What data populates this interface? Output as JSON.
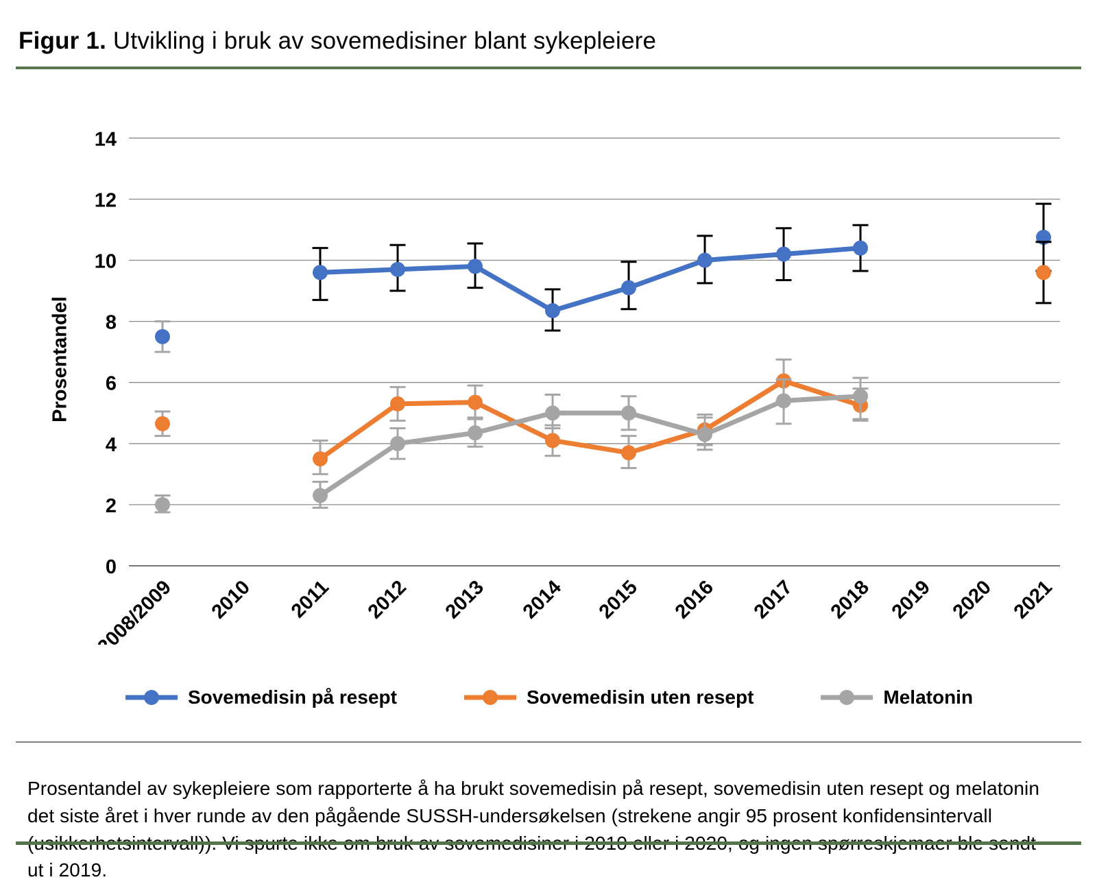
{
  "figure": {
    "title_prefix": "Figur 1.",
    "title_rest": " Utvikling i bruk av sovemedisiner blant sykepleiere",
    "caption": "Prosentandel av sykepleiere som rapporterte å ha brukt sovemedisin på resept, sovemedisin uten resept og melatonin det siste året i hver runde av den pågående SUSSH-undersøkelsen (strekene angir 95 prosent konfidensintervall (usikkerhetsintervall)). Vi spurte ikke om bruk av sovemedisiner i 2010 eller i 2020, og ingen spørreskjemaer ble sendt ut i 2019.",
    "accent_green": "#5a7850",
    "gridline_color": "#8c8c8c",
    "axis_color": "#767676"
  },
  "chart_data": {
    "type": "line",
    "title": "Utvikling i bruk av sovemedisiner blant sykepleiere",
    "xlabel": "",
    "ylabel": "Prosentandel",
    "ylim": [
      0,
      14
    ],
    "yticks": [
      0,
      2,
      4,
      6,
      8,
      10,
      12,
      14
    ],
    "grid": true,
    "legend_position": "bottom",
    "error_bars": "95 prosent konfidensintervall",
    "categories": [
      "2008/2009",
      "2010",
      "2011",
      "2012",
      "2013",
      "2014",
      "2015",
      "2016",
      "2017",
      "2018",
      "2019",
      "2020",
      "2021"
    ],
    "series": [
      {
        "name": "Sovemedisin på resept",
        "color": "#4472C4",
        "error_bar_color_default": "#000000",
        "points": [
          {
            "category": "2008/2009",
            "value": 7.5,
            "ci_low": 7.0,
            "ci_high": 8.0,
            "error_bar_color": "#A6A6A6"
          },
          {
            "category": "2011",
            "value": 9.6,
            "ci_low": 8.7,
            "ci_high": 10.4
          },
          {
            "category": "2012",
            "value": 9.7,
            "ci_low": 9.0,
            "ci_high": 10.5
          },
          {
            "category": "2013",
            "value": 9.8,
            "ci_low": 9.1,
            "ci_high": 10.55
          },
          {
            "category": "2014",
            "value": 8.35,
            "ci_low": 7.7,
            "ci_high": 9.05
          },
          {
            "category": "2015",
            "value": 9.1,
            "ci_low": 8.4,
            "ci_high": 9.95
          },
          {
            "category": "2016",
            "value": 10.0,
            "ci_low": 9.25,
            "ci_high": 10.8
          },
          {
            "category": "2017",
            "value": 10.2,
            "ci_low": 9.35,
            "ci_high": 11.05
          },
          {
            "category": "2018",
            "value": 10.4,
            "ci_low": 9.65,
            "ci_high": 11.15
          },
          {
            "category": "2021",
            "value": 10.75,
            "ci_low": 9.65,
            "ci_high": 11.85
          }
        ]
      },
      {
        "name": "Sovemedisin uten resept",
        "color": "#ED7D31",
        "error_bar_color_default": "#A6A6A6",
        "points": [
          {
            "category": "2008/2009",
            "value": 4.65,
            "ci_low": 4.25,
            "ci_high": 5.05
          },
          {
            "category": "2011",
            "value": 3.5,
            "ci_low": 3.0,
            "ci_high": 4.1
          },
          {
            "category": "2012",
            "value": 5.3,
            "ci_low": 4.75,
            "ci_high": 5.85
          },
          {
            "category": "2013",
            "value": 5.35,
            "ci_low": 4.8,
            "ci_high": 5.9
          },
          {
            "category": "2014",
            "value": 4.1,
            "ci_low": 3.6,
            "ci_high": 4.6
          },
          {
            "category": "2015",
            "value": 3.7,
            "ci_low": 3.2,
            "ci_high": 4.25
          },
          {
            "category": "2016",
            "value": 4.45,
            "ci_low": 3.95,
            "ci_high": 4.95
          },
          {
            "category": "2017",
            "value": 6.05,
            "ci_low": 5.4,
            "ci_high": 6.75
          },
          {
            "category": "2018",
            "value": 5.25,
            "ci_low": 4.75,
            "ci_high": 5.8
          },
          {
            "category": "2021",
            "value": 9.6,
            "ci_low": 8.6,
            "ci_high": 10.6,
            "error_bar_color": "#000000"
          }
        ]
      },
      {
        "name": "Melatonin",
        "color": "#A5A5A5",
        "error_bar_color_default": "#A6A6A6",
        "points": [
          {
            "category": "2008/2009",
            "value": 2.0,
            "ci_low": 1.75,
            "ci_high": 2.3
          },
          {
            "category": "2011",
            "value": 2.3,
            "ci_low": 1.9,
            "ci_high": 2.75
          },
          {
            "category": "2012",
            "value": 4.0,
            "ci_low": 3.5,
            "ci_high": 4.5
          },
          {
            "category": "2013",
            "value": 4.35,
            "ci_low": 3.9,
            "ci_high": 4.85
          },
          {
            "category": "2014",
            "value": 5.0,
            "ci_low": 4.5,
            "ci_high": 5.6
          },
          {
            "category": "2015",
            "value": 5.0,
            "ci_low": 4.45,
            "ci_high": 5.55
          },
          {
            "category": "2016",
            "value": 4.3,
            "ci_low": 3.8,
            "ci_high": 4.85
          },
          {
            "category": "2017",
            "value": 5.4,
            "ci_low": 4.65,
            "ci_high": 6.1
          },
          {
            "category": "2018",
            "value": 5.55,
            "ci_low": 4.8,
            "ci_high": 6.15
          }
        ]
      }
    ]
  }
}
